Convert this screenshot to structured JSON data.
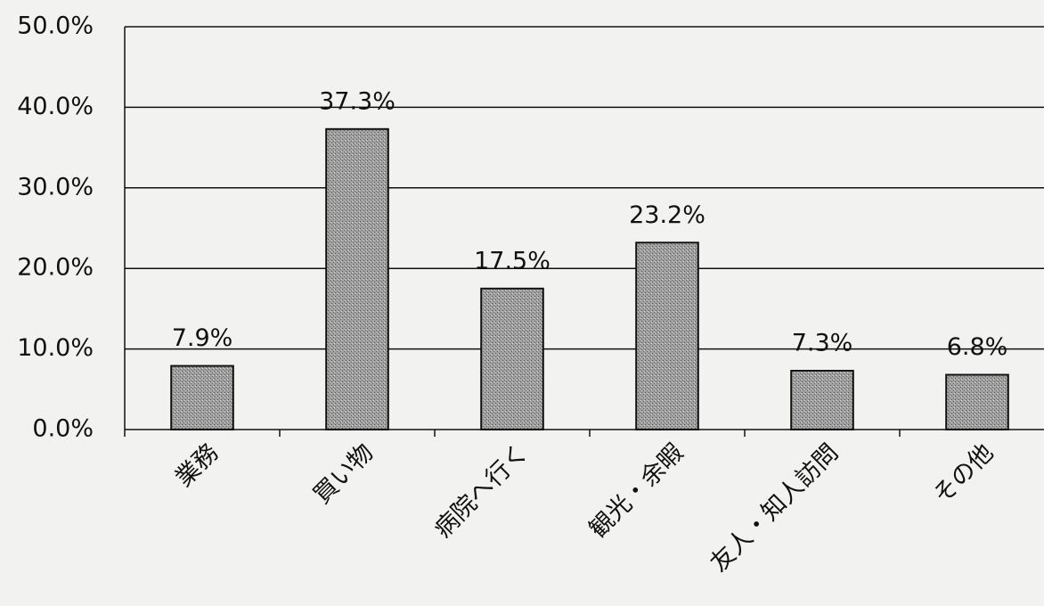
{
  "chart_data": {
    "type": "bar",
    "categories": [
      "業務",
      "買い物",
      "病院へ行く",
      "観光・余暇",
      "友人・知人訪問",
      "その他"
    ],
    "values": [
      7.9,
      37.3,
      17.5,
      23.2,
      7.3,
      6.8
    ],
    "value_labels": [
      "7.9%",
      "37.3%",
      "17.5%",
      "23.2%",
      "7.3%",
      "6.8%"
    ],
    "color": "#9a9a9a",
    "ylim": [
      0,
      50
    ],
    "yticks": [
      {
        "value": 0,
        "label": "0.0%"
      },
      {
        "value": 10,
        "label": "10.0%"
      },
      {
        "value": 20,
        "label": "20.0%"
      },
      {
        "value": 30,
        "label": "30.0%"
      },
      {
        "value": 40,
        "label": "40.0%"
      },
      {
        "value": 50,
        "label": "50.0%"
      }
    ],
    "grid": true
  }
}
